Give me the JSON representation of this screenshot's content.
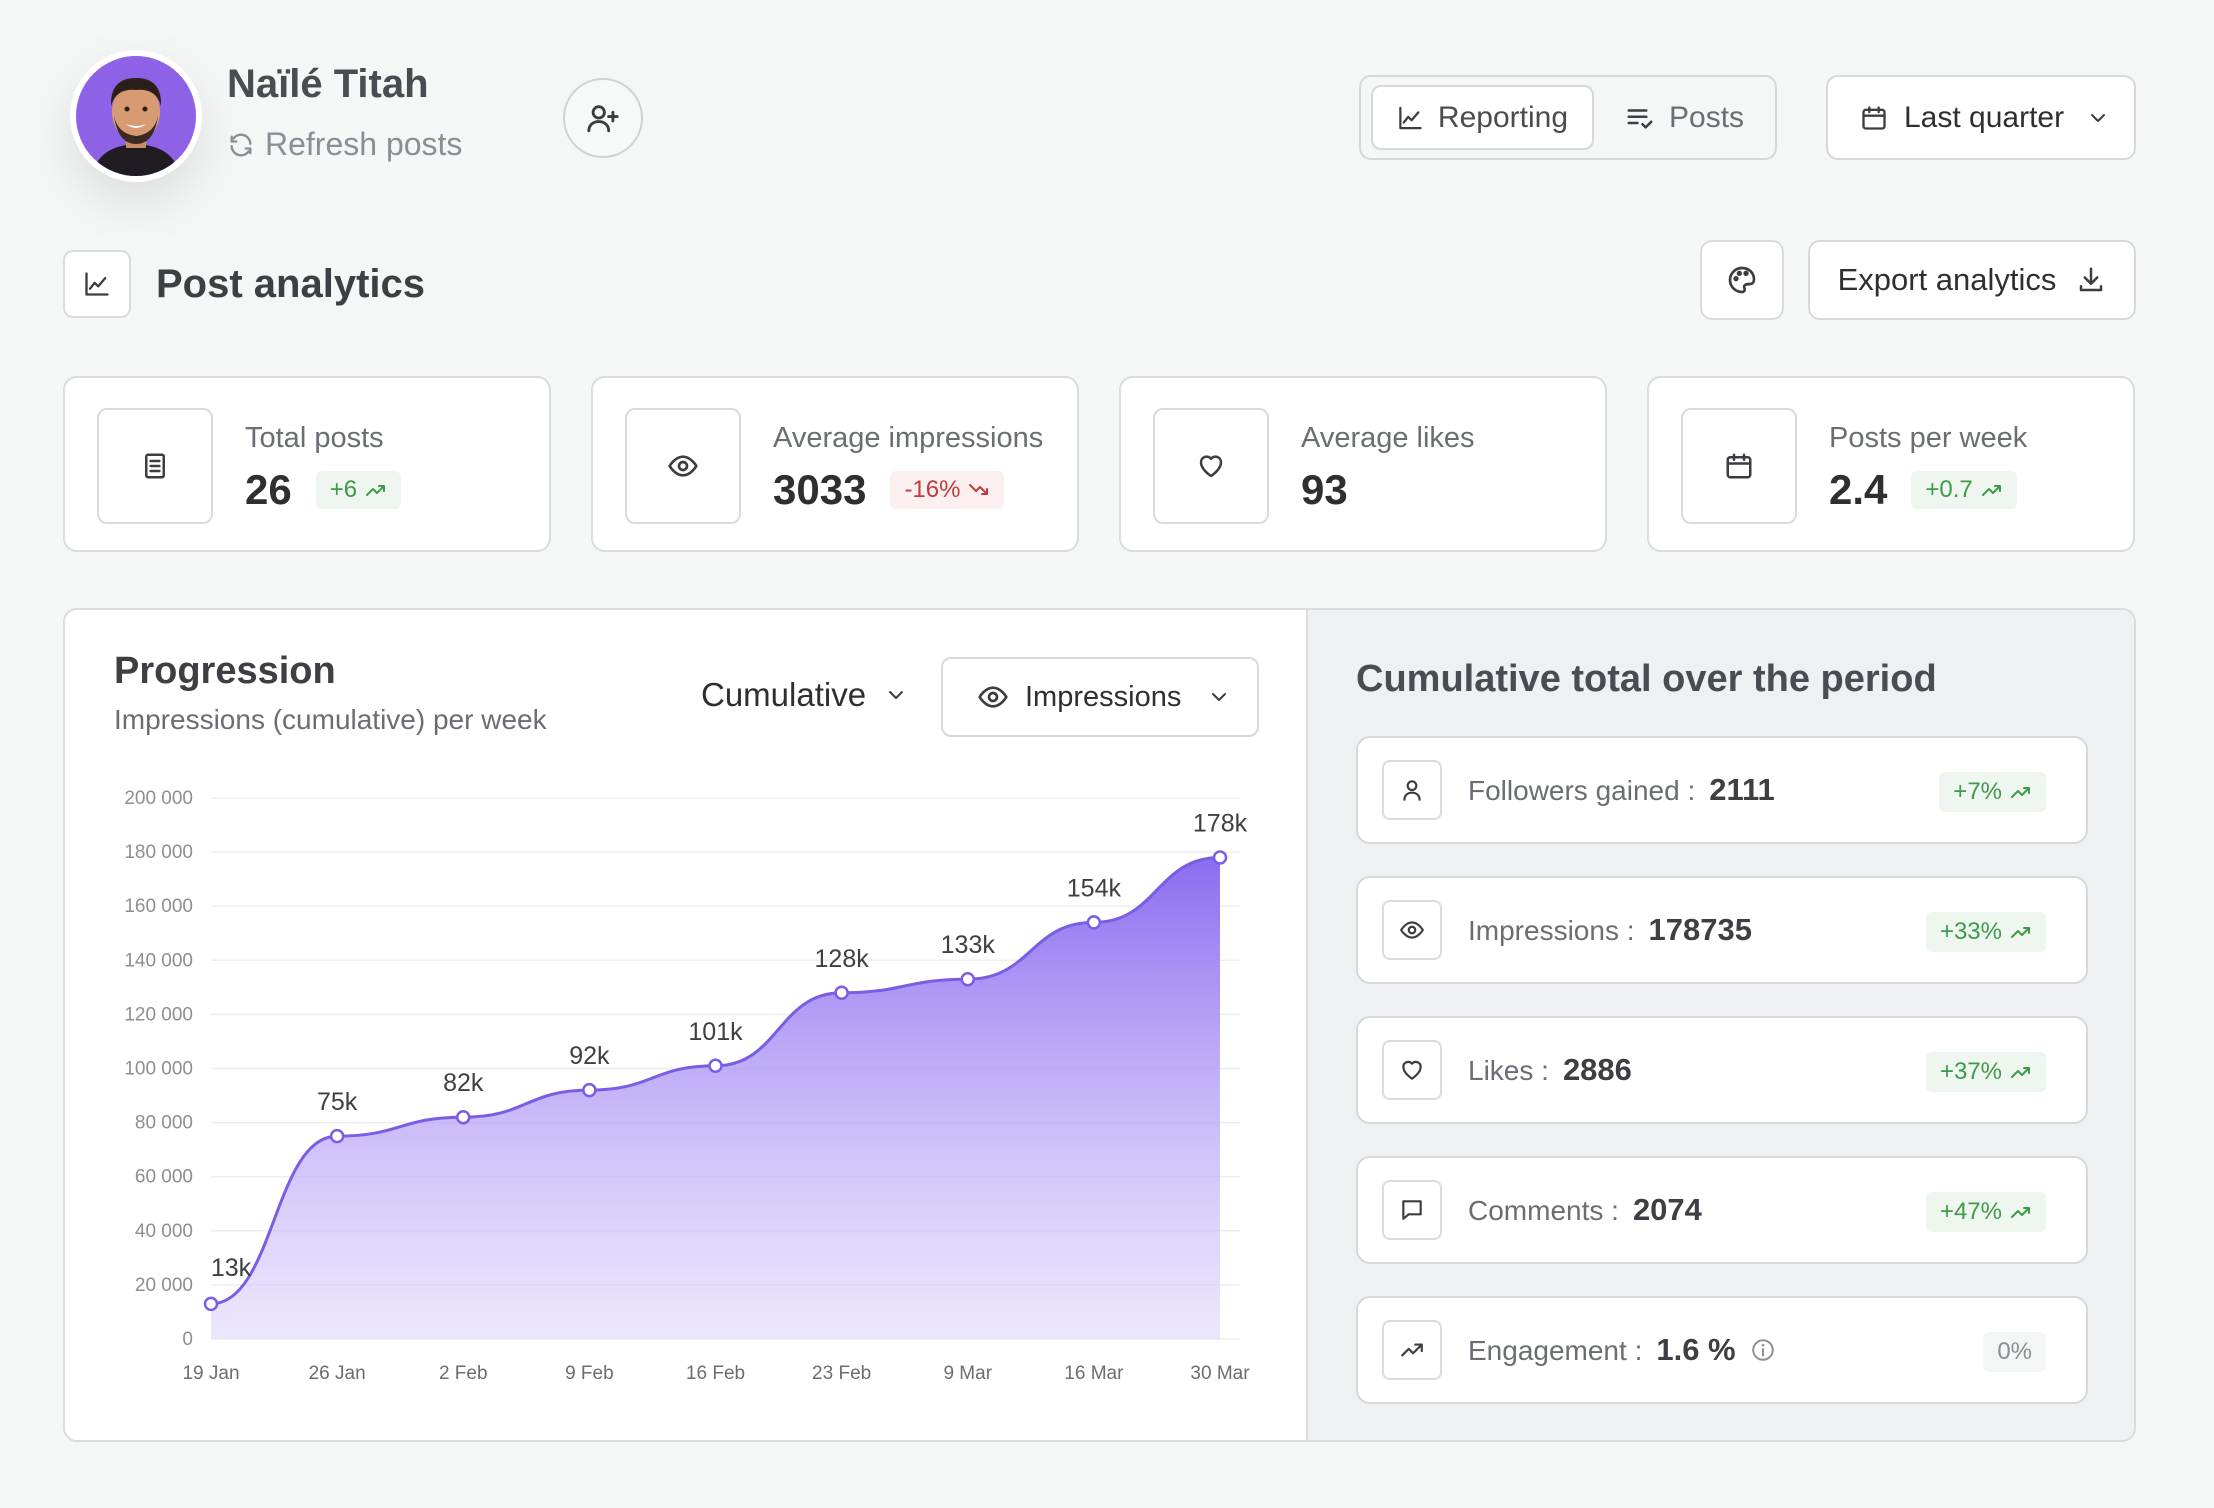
{
  "header": {
    "user_name": "Naïlé Titah",
    "refresh_label": "Refresh posts",
    "tabs": [
      {
        "label": "Reporting",
        "icon": "line-chart-icon",
        "active": true
      },
      {
        "label": "Posts",
        "icon": "list-check-icon",
        "active": false
      }
    ],
    "period": "Last quarter"
  },
  "section": {
    "title": "Post analytics",
    "export_label": "Export analytics"
  },
  "stats": [
    {
      "label": "Total posts",
      "value": "26",
      "delta": "+6",
      "trend": "up",
      "icon": "document-icon"
    },
    {
      "label": "Average impressions",
      "value": "3033",
      "delta": "-16%",
      "trend": "down",
      "icon": "eye-icon"
    },
    {
      "label": "Average likes",
      "value": "93",
      "delta": "",
      "trend": "none",
      "icon": "heart-icon"
    },
    {
      "label": "Posts per week",
      "value": "2.4",
      "delta": "+0.7",
      "trend": "up",
      "icon": "calendar-icon"
    }
  ],
  "progression": {
    "title": "Progression",
    "subtitle": "Impressions (cumulative) per week",
    "mode": "Cumulative",
    "metric": "Impressions"
  },
  "chart_data": {
    "type": "area",
    "x": [
      "19 Jan",
      "26 Jan",
      "2 Feb",
      "9 Feb",
      "16 Feb",
      "23 Feb",
      "9 Mar",
      "16 Mar",
      "30 Mar"
    ],
    "values": [
      13000,
      75000,
      82000,
      92000,
      101000,
      128000,
      133000,
      154000,
      178000
    ],
    "data_labels": [
      "13k",
      "75k",
      "82k",
      "92k",
      "101k",
      "128k",
      "133k",
      "154k",
      "178k"
    ],
    "y_ticks": [
      "0",
      "20 000",
      "40 000",
      "60 000",
      "80 000",
      "100 000",
      "120 000",
      "140 000",
      "160 000",
      "180 000",
      "200 000"
    ],
    "ylim": [
      0,
      200000
    ],
    "grid": true,
    "color": "#7b5ce5"
  },
  "cumulative": {
    "title": "Cumulative total over the period",
    "rows": [
      {
        "label": "Followers gained :",
        "value": "2111",
        "delta": "+7%",
        "trend": "up",
        "icon": "user-icon"
      },
      {
        "label": "Impressions :",
        "value": "178735",
        "delta": "+33%",
        "trend": "up",
        "icon": "eye-icon"
      },
      {
        "label": "Likes :",
        "value": "2886",
        "delta": "+37%",
        "trend": "up",
        "icon": "heart-icon"
      },
      {
        "label": "Comments :",
        "value": "2074",
        "delta": "+47%",
        "trend": "up",
        "icon": "comment-icon"
      },
      {
        "label": "Engagement :",
        "value": "1.6 %",
        "delta": "0%",
        "trend": "neutral",
        "icon": "trend-up-icon"
      }
    ]
  }
}
